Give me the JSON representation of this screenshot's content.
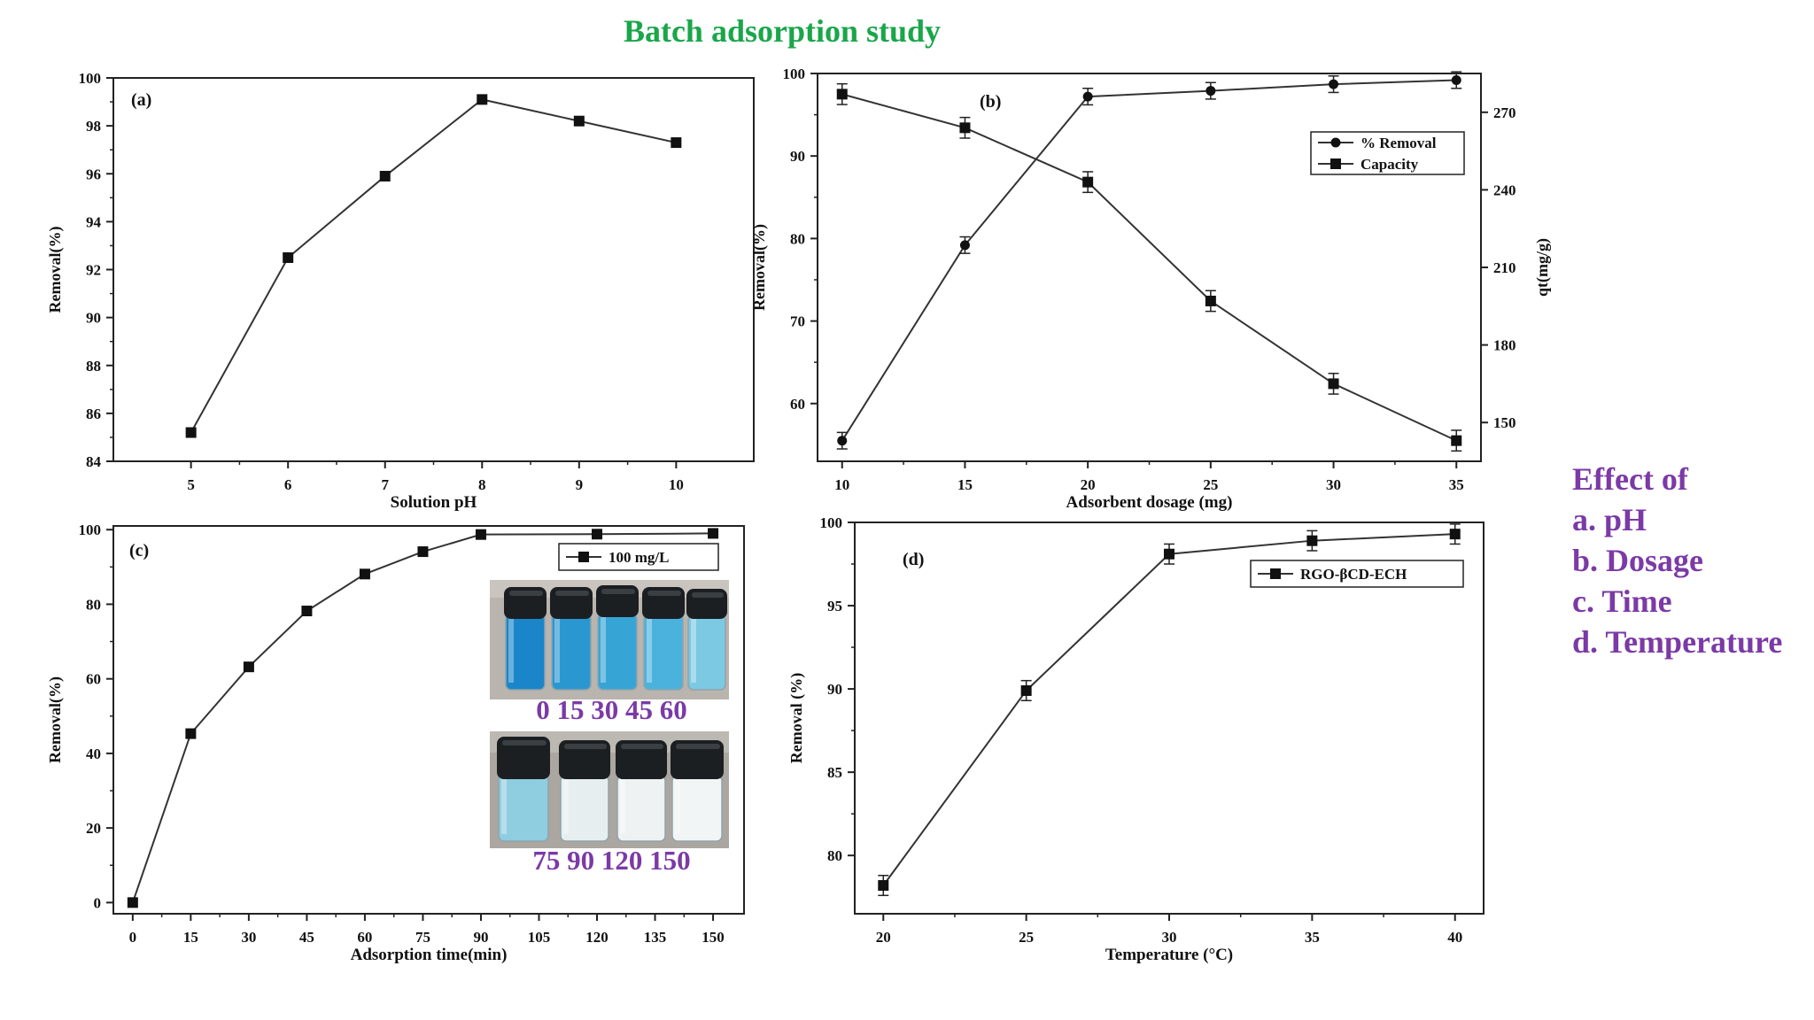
{
  "title": "Batch adsorption study",
  "effects": {
    "heading": "Effect of",
    "items": [
      "a. pH",
      "b. Dosage",
      "c. Time",
      "d. Temperature"
    ]
  },
  "colors": {
    "title": "#1aa64a",
    "effects": "#7b3aa6",
    "line": "#333333",
    "vial_dark": "#1f7fc4",
    "vial_light": "#d8ecf3"
  },
  "chart_data": [
    {
      "id": "a",
      "type": "line",
      "panel_label": "(a)",
      "xlabel": "Solution pH",
      "ylabel": "Removal(%)",
      "x": [
        5,
        6,
        7,
        8,
        9,
        10
      ],
      "series": [
        {
          "values": [
            85.2,
            92.5,
            95.9,
            99.1,
            98.2,
            97.3
          ],
          "marker": "square"
        }
      ],
      "xlim": [
        4.2,
        10.8
      ],
      "ylim": [
        84,
        100
      ],
      "xticks": [
        5,
        6,
        7,
        8,
        9,
        10
      ],
      "yticks": [
        84,
        86,
        88,
        90,
        92,
        94,
        96,
        98,
        100
      ],
      "grid": false
    },
    {
      "id": "b",
      "type": "line",
      "panel_label": "(b)",
      "xlabel": "Adsorbent dosage (mg)",
      "ylabel": "Removal(%)",
      "y2label": "qt(mg/g)",
      "x": [
        10,
        15,
        20,
        25,
        30,
        35
      ],
      "series": [
        {
          "name": "% Removal",
          "values": [
            55.5,
            79.2,
            97.2,
            97.9,
            98.7,
            99.2
          ],
          "marker": "circle",
          "axis": "left",
          "error": 1.0
        },
        {
          "name": "Capacity",
          "values": [
            277,
            264,
            243,
            197,
            165,
            143
          ],
          "marker": "square",
          "axis": "right",
          "error": 4.0
        }
      ],
      "xlim": [
        9,
        36
      ],
      "ylim": [
        53,
        100
      ],
      "y2lim": [
        135,
        285
      ],
      "xticks": [
        10,
        15,
        20,
        25,
        30,
        35
      ],
      "yticks": [
        60,
        70,
        80,
        90,
        100
      ],
      "y2ticks": [
        150,
        180,
        210,
        240,
        270
      ],
      "legend": "top-right",
      "grid": false
    },
    {
      "id": "c",
      "type": "line",
      "panel_label": "(c)",
      "xlabel": "Adsorption time(min)",
      "ylabel": "Removal(%)",
      "x": [
        0,
        15,
        30,
        45,
        60,
        75,
        90,
        120,
        150
      ],
      "series": [
        {
          "name": "100 mg/L",
          "values": [
            0,
            45.3,
            63.2,
            78.2,
            88.1,
            94.1,
            98.7,
            98.8,
            99.0
          ],
          "marker": "square"
        }
      ],
      "xlim": [
        -5,
        158
      ],
      "ylim": [
        -3,
        101
      ],
      "xticks": [
        0,
        15,
        30,
        45,
        60,
        75,
        90,
        105,
        120,
        135,
        150
      ],
      "yticks": [
        0,
        20,
        40,
        60,
        80,
        100
      ],
      "legend": "top-right",
      "grid": false,
      "inset_captions": [
        "0 15 30 45 60",
        "75 90 120 150"
      ]
    },
    {
      "id": "d",
      "type": "line",
      "panel_label": "(d)",
      "xlabel": "Temperature (°C)",
      "ylabel": "Removal (%)",
      "x": [
        20,
        25,
        30,
        35,
        40
      ],
      "series": [
        {
          "name": "RGO-βCD-ECH",
          "values": [
            78.2,
            89.9,
            98.1,
            98.9,
            99.3
          ],
          "marker": "square",
          "error": 0.6
        }
      ],
      "xlim": [
        19,
        41
      ],
      "ylim": [
        76.5,
        100
      ],
      "xticks": [
        20,
        25,
        30,
        35,
        40
      ],
      "yticks": [
        80,
        85,
        90,
        95,
        100
      ],
      "legend": "top-right",
      "grid": false
    }
  ]
}
